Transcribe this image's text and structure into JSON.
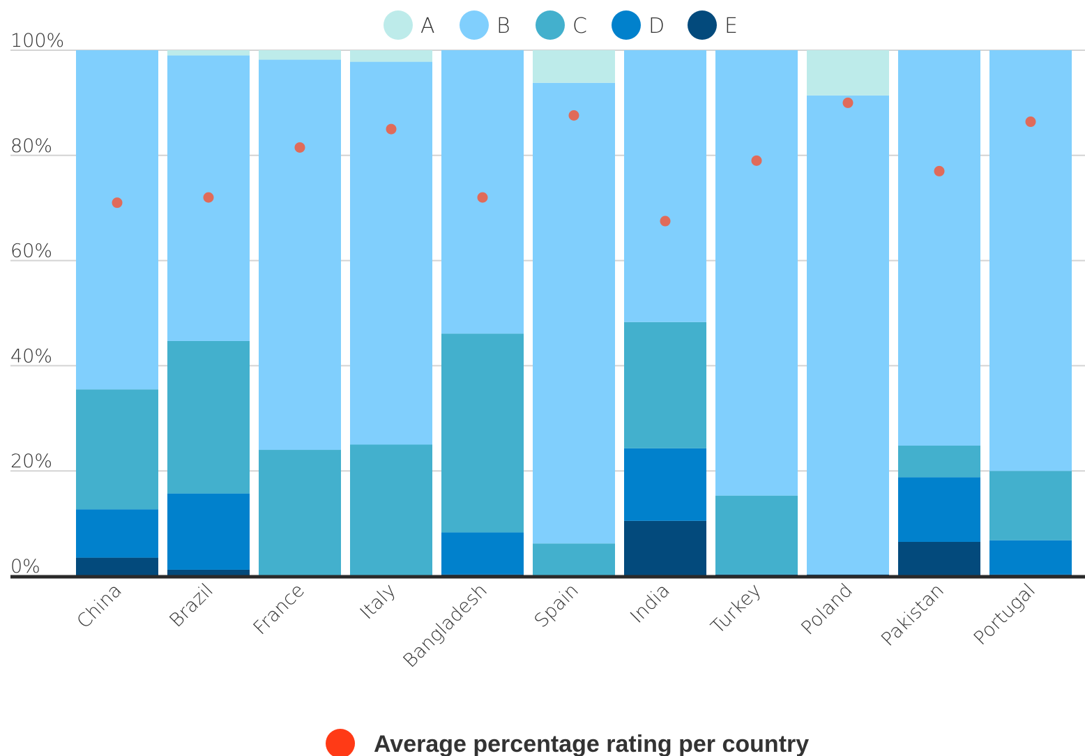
{
  "chart_data": {
    "type": "bar",
    "stacked": true,
    "categories": [
      "China",
      "Brazil",
      "France",
      "Italy",
      "Bangladesh",
      "Spain",
      "India",
      "Turkey",
      "Poland",
      "Pakistan",
      "Portugal"
    ],
    "series": [
      {
        "name": "E",
        "color": "#034a7c",
        "values": [
          3.5,
          1.2,
          0,
          0,
          0.3,
          0,
          10.5,
          0.3,
          0.3,
          6.5,
          0.3
        ]
      },
      {
        "name": "D",
        "color": "#0181cc",
        "values": [
          9.2,
          14.5,
          0,
          0,
          8.0,
          0,
          13.8,
          0,
          0,
          12.3,
          6.5
        ]
      },
      {
        "name": "C",
        "color": "#43b0cd",
        "values": [
          22.8,
          29.0,
          24.0,
          25.0,
          37.8,
          6.2,
          24.0,
          15.0,
          0,
          6.0,
          13.2
        ]
      },
      {
        "name": "B",
        "color": "#80cffd",
        "values": [
          64.5,
          54.3,
          74.2,
          72.8,
          53.9,
          87.6,
          51.7,
          84.7,
          91.1,
          75.2,
          80.0
        ]
      },
      {
        "name": "A",
        "color": "#bdebea",
        "values": [
          0,
          1.0,
          1.8,
          2.2,
          0,
          6.2,
          0,
          0,
          8.6,
          0,
          0
        ]
      }
    ],
    "legend_order": [
      "A",
      "B",
      "C",
      "D",
      "E"
    ],
    "average": {
      "name": "Average percentage rating per country",
      "color": "#e06b5a",
      "legend_color": "#ff3a16",
      "values": [
        71,
        72,
        81.5,
        85,
        72,
        87.6,
        67.5,
        79,
        90,
        77,
        86.4
      ]
    },
    "y_ticks": [
      "0%",
      "20%",
      "40%",
      "60%",
      "80%",
      "100%"
    ],
    "ylim": [
      0,
      100
    ],
    "grid": true,
    "legend_position": "top-center",
    "footer_legend": "Average percentage rating per country"
  }
}
